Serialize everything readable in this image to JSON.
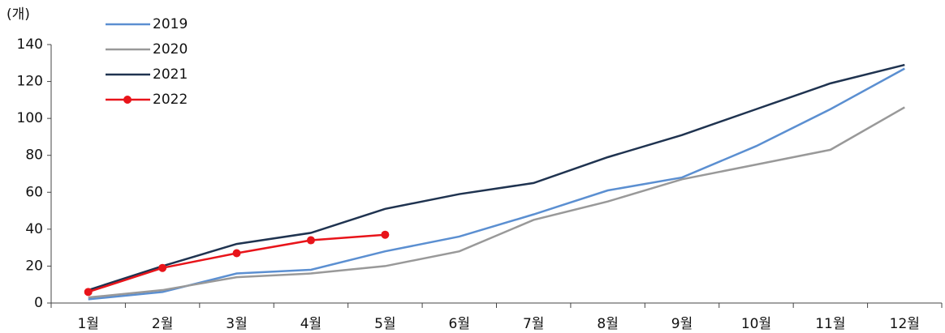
{
  "chart_data": {
    "type": "line",
    "y_axis_label": "(개)",
    "categories": [
      "1월",
      "2월",
      "3월",
      "4월",
      "5월",
      "6월",
      "7월",
      "8월",
      "9월",
      "10월",
      "11월",
      "12월"
    ],
    "series": [
      {
        "name": "2019",
        "color": "#5b8fd1",
        "values": [
          2,
          6,
          16,
          18,
          28,
          36,
          48,
          61,
          68,
          85,
          105,
          127
        ]
      },
      {
        "name": "2020",
        "color": "#999999",
        "values": [
          3,
          7,
          14,
          16,
          20,
          28,
          45,
          55,
          67,
          75,
          83,
          106
        ]
      },
      {
        "name": "2021",
        "color": "#1f3350",
        "values": [
          7,
          20,
          32,
          38,
          51,
          59,
          65,
          79,
          91,
          105,
          119,
          129
        ]
      },
      {
        "name": "2022",
        "color": "#e8141a",
        "markers": true,
        "values": [
          6,
          19,
          27,
          34,
          37,
          null,
          null,
          null,
          null,
          null,
          null,
          null
        ]
      }
    ],
    "ylim": [
      0,
      140
    ],
    "yticks": [
      0,
      20,
      40,
      60,
      80,
      100,
      120,
      140
    ],
    "grid": false,
    "legend": "upper left"
  }
}
